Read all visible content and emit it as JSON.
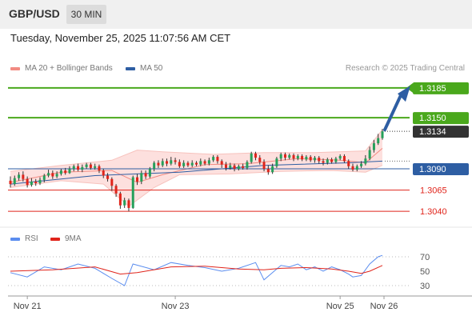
{
  "header": {
    "symbol": "GBP/USD",
    "timeframe": "30 MIN"
  },
  "timestamp": "Tuesday, November 25, 2025 11:07:56 AM CET",
  "legend": {
    "bb_label": "MA 20 + Bollinger Bands",
    "bb_color": "#f28b82",
    "ma50_label": "MA 50",
    "ma50_color": "#2e5ea3",
    "rsi_label": "RSI",
    "rsi_color": "#5b8def",
    "rsi_ma_label": "9MA",
    "rsi_ma_color": "#e0241b"
  },
  "credit": "Research © 2025 Trading Central",
  "chart_data": {
    "type": "candlestick",
    "price_ylim": [
      1.3027,
      1.3199
    ],
    "levels": [
      {
        "label": "1.3185",
        "value": 1.3185,
        "color": "#4aa81c",
        "style": "target"
      },
      {
        "label": "1.3150",
        "value": 1.315,
        "color": "#4aa81c",
        "style": "resistance"
      },
      {
        "label": "1.3134",
        "value": 1.3134,
        "color": "#333333",
        "style": "last"
      },
      {
        "label": "1.3090",
        "value": 1.309,
        "color": "#2e5ea3",
        "style": "pivot"
      },
      {
        "label": "1.3065",
        "value": 1.3065,
        "color": "#e0241b",
        "style": "support"
      },
      {
        "label": "1.3040",
        "value": 1.304,
        "color": "#e0241b",
        "style": "support"
      }
    ],
    "x_ticks": [
      "Nov 21",
      "Nov 23",
      "Nov 25",
      "Nov 26"
    ],
    "rsi_ticks": [
      70,
      50,
      30
    ],
    "rsi_ylim": [
      20,
      80
    ],
    "candles": [
      [
        1.3076,
        1.3072,
        1.3081,
        1.3068
      ],
      [
        1.3072,
        1.3079,
        1.3082,
        1.307
      ],
      [
        1.3079,
        1.3083,
        1.3086,
        1.3076
      ],
      [
        1.3083,
        1.3078,
        1.3087,
        1.3075
      ],
      [
        1.3078,
        1.3071,
        1.3081,
        1.3068
      ],
      [
        1.3071,
        1.3075,
        1.3079,
        1.3069
      ],
      [
        1.3075,
        1.3073,
        1.3078,
        1.307
      ],
      [
        1.3073,
        1.3077,
        1.308,
        1.3071
      ],
      [
        1.3077,
        1.3082,
        1.3084,
        1.3074
      ],
      [
        1.3082,
        1.3085,
        1.3089,
        1.308
      ],
      [
        1.3085,
        1.3081,
        1.3088,
        1.3078
      ],
      [
        1.3081,
        1.3084,
        1.3087,
        1.3079
      ],
      [
        1.3084,
        1.3088,
        1.309,
        1.3082
      ],
      [
        1.3088,
        1.3085,
        1.3091,
        1.3083
      ],
      [
        1.3085,
        1.309,
        1.3093,
        1.3084
      ],
      [
        1.309,
        1.3093,
        1.3095,
        1.3087
      ],
      [
        1.3093,
        1.3089,
        1.3096,
        1.3087
      ],
      [
        1.3089,
        1.3092,
        1.3095,
        1.3086
      ],
      [
        1.3092,
        1.3095,
        1.3097,
        1.309
      ],
      [
        1.3095,
        1.3091,
        1.3097,
        1.3089
      ],
      [
        1.3091,
        1.3093,
        1.3096,
        1.3089
      ],
      [
        1.3093,
        1.3088,
        1.3095,
        1.3085
      ],
      [
        1.3088,
        1.3082,
        1.309,
        1.3079
      ],
      [
        1.3082,
        1.3078,
        1.3085,
        1.3075
      ],
      [
        1.3078,
        1.307,
        1.308,
        1.3064
      ],
      [
        1.307,
        1.3061,
        1.3072,
        1.3057
      ],
      [
        1.3061,
        1.3047,
        1.3063,
        1.3043
      ],
      [
        1.3047,
        1.3053,
        1.3056,
        1.3044
      ],
      [
        1.3053,
        1.3044,
        1.3055,
        1.304
      ],
      [
        1.3044,
        1.308,
        1.3082,
        1.3043
      ],
      [
        1.308,
        1.3075,
        1.3084,
        1.3071
      ],
      [
        1.3075,
        1.3085,
        1.3088,
        1.3072
      ],
      [
        1.3085,
        1.3081,
        1.3088,
        1.3078
      ],
      [
        1.3081,
        1.309,
        1.3092,
        1.3079
      ],
      [
        1.309,
        1.3097,
        1.3099,
        1.3087
      ],
      [
        1.3097,
        1.3094,
        1.31,
        1.3091
      ],
      [
        1.3094,
        1.3099,
        1.3102,
        1.3092
      ],
      [
        1.3099,
        1.3096,
        1.3102,
        1.3093
      ],
      [
        1.3096,
        1.31,
        1.3104,
        1.3094
      ],
      [
        1.31,
        1.3098,
        1.3103,
        1.3095
      ],
      [
        1.3098,
        1.3093,
        1.3101,
        1.3091
      ],
      [
        1.3093,
        1.3097,
        1.31,
        1.3091
      ],
      [
        1.3097,
        1.3094,
        1.3099,
        1.3092
      ],
      [
        1.3094,
        1.3097,
        1.31,
        1.3092
      ],
      [
        1.3097,
        1.3095,
        1.3099,
        1.3093
      ],
      [
        1.3095,
        1.3099,
        1.3102,
        1.3093
      ],
      [
        1.3099,
        1.3096,
        1.3101,
        1.3094
      ],
      [
        1.3096,
        1.31,
        1.3103,
        1.3094
      ],
      [
        1.31,
        1.3104,
        1.3106,
        1.3098
      ],
      [
        1.3104,
        1.3099,
        1.3106,
        1.3096
      ],
      [
        1.3099,
        1.3095,
        1.3101,
        1.3091
      ],
      [
        1.3095,
        1.3091,
        1.3098,
        1.3088
      ],
      [
        1.3091,
        1.3094,
        1.3097,
        1.3089
      ],
      [
        1.3094,
        1.309,
        1.3096,
        1.3087
      ],
      [
        1.309,
        1.3093,
        1.3095,
        1.3088
      ],
      [
        1.3093,
        1.3091,
        1.3096,
        1.3089
      ],
      [
        1.3091,
        1.3098,
        1.31,
        1.3089
      ],
      [
        1.3098,
        1.3108,
        1.311,
        1.3096
      ],
      [
        1.3108,
        1.3103,
        1.311,
        1.31
      ],
      [
        1.3103,
        1.3098,
        1.3106,
        1.3095
      ],
      [
        1.3098,
        1.309,
        1.3101,
        1.3087
      ],
      [
        1.309,
        1.3086,
        1.3094,
        1.3083
      ],
      [
        1.3086,
        1.3093,
        1.3096,
        1.3084
      ],
      [
        1.3093,
        1.3102,
        1.3104,
        1.3091
      ],
      [
        1.3102,
        1.3107,
        1.3109,
        1.3099
      ],
      [
        1.3107,
        1.3103,
        1.3109,
        1.31
      ],
      [
        1.3103,
        1.3106,
        1.3108,
        1.3101
      ],
      [
        1.3106,
        1.3102,
        1.3108,
        1.3099
      ],
      [
        1.3102,
        1.3105,
        1.3107,
        1.31
      ],
      [
        1.3105,
        1.3101,
        1.3107,
        1.3099
      ],
      [
        1.3101,
        1.3104,
        1.3106,
        1.3099
      ],
      [
        1.3104,
        1.31,
        1.3106,
        1.3098
      ],
      [
        1.31,
        1.3103,
        1.3105,
        1.3097
      ],
      [
        1.3103,
        1.3099,
        1.3105,
        1.3096
      ],
      [
        1.3099,
        1.3097,
        1.3102,
        1.3094
      ],
      [
        1.3097,
        1.3101,
        1.3103,
        1.3095
      ],
      [
        1.3101,
        1.3098,
        1.3103,
        1.3096
      ],
      [
        1.3098,
        1.3102,
        1.3104,
        1.3096
      ],
      [
        1.3102,
        1.3105,
        1.3107,
        1.31
      ],
      [
        1.3105,
        1.3099,
        1.3107,
        1.3097
      ],
      [
        1.3099,
        1.3093,
        1.3101,
        1.309
      ],
      [
        1.3093,
        1.3089,
        1.3096,
        1.3087
      ],
      [
        1.3089,
        1.3093,
        1.3095,
        1.3087
      ],
      [
        1.3093,
        1.3096,
        1.3099,
        1.3091
      ],
      [
        1.3096,
        1.3102,
        1.3106,
        1.3094
      ],
      [
        1.3102,
        1.3112,
        1.3116,
        1.31
      ],
      [
        1.3112,
        1.312,
        1.3124,
        1.3109
      ],
      [
        1.312,
        1.3126,
        1.3131,
        1.3118
      ],
      [
        1.3126,
        1.3134,
        1.3137,
        1.3124
      ]
    ],
    "bb": {
      "upper": [
        [
          0,
          1.3087
        ],
        [
          12,
          1.3094
        ],
        [
          24,
          1.31
        ],
        [
          30,
          1.3112
        ],
        [
          36,
          1.311
        ],
        [
          48,
          1.3107
        ],
        [
          60,
          1.3109
        ],
        [
          72,
          1.3109
        ],
        [
          84,
          1.3111
        ],
        [
          88,
          1.3136
        ]
      ],
      "lower": [
        [
          0,
          1.3068
        ],
        [
          12,
          1.3076
        ],
        [
          22,
          1.3072
        ],
        [
          28,
          1.3046
        ],
        [
          34,
          1.3068
        ],
        [
          40,
          1.3083
        ],
        [
          52,
          1.3084
        ],
        [
          64,
          1.3087
        ],
        [
          76,
          1.3088
        ],
        [
          84,
          1.3086
        ],
        [
          88,
          1.3094
        ]
      ],
      "mid": [
        [
          0,
          1.3074
        ],
        [
          12,
          1.3086
        ],
        [
          24,
          1.3088
        ],
        [
          30,
          1.3074
        ],
        [
          36,
          1.3083
        ],
        [
          46,
          1.3095
        ],
        [
          56,
          1.3096
        ],
        [
          68,
          1.3102
        ],
        [
          78,
          1.31
        ],
        [
          84,
          1.3097
        ],
        [
          88,
          1.3114
        ]
      ]
    },
    "ma50": [
      [
        0,
        1.3072
      ],
      [
        20,
        1.3082
      ],
      [
        40,
        1.3086
      ],
      [
        60,
        1.3094
      ],
      [
        80,
        1.3097
      ],
      [
        88,
        1.3099
      ]
    ],
    "rsi": [
      [
        0,
        48
      ],
      [
        4,
        42
      ],
      [
        8,
        56
      ],
      [
        12,
        52
      ],
      [
        16,
        60
      ],
      [
        20,
        54
      ],
      [
        24,
        40
      ],
      [
        27,
        30
      ],
      [
        29,
        60
      ],
      [
        34,
        52
      ],
      [
        38,
        62
      ],
      [
        42,
        58
      ],
      [
        46,
        55
      ],
      [
        50,
        50
      ],
      [
        54,
        54
      ],
      [
        58,
        62
      ],
      [
        60,
        38
      ],
      [
        62,
        48
      ],
      [
        64,
        58
      ],
      [
        66,
        56
      ],
      [
        68,
        60
      ],
      [
        70,
        52
      ],
      [
        72,
        56
      ],
      [
        74,
        50
      ],
      [
        76,
        56
      ],
      [
        78,
        52
      ],
      [
        80,
        46
      ],
      [
        81,
        42
      ],
      [
        83,
        44
      ],
      [
        85,
        60
      ],
      [
        87,
        70
      ],
      [
        88,
        72
      ]
    ],
    "rsi_ma": [
      [
        0,
        50
      ],
      [
        10,
        52
      ],
      [
        20,
        56
      ],
      [
        26,
        46
      ],
      [
        30,
        48
      ],
      [
        38,
        56
      ],
      [
        46,
        57
      ],
      [
        54,
        53
      ],
      [
        60,
        52
      ],
      [
        64,
        54
      ],
      [
        70,
        55
      ],
      [
        76,
        53
      ],
      [
        80,
        50
      ],
      [
        83,
        47
      ],
      [
        85,
        50
      ],
      [
        88,
        58
      ]
    ]
  }
}
